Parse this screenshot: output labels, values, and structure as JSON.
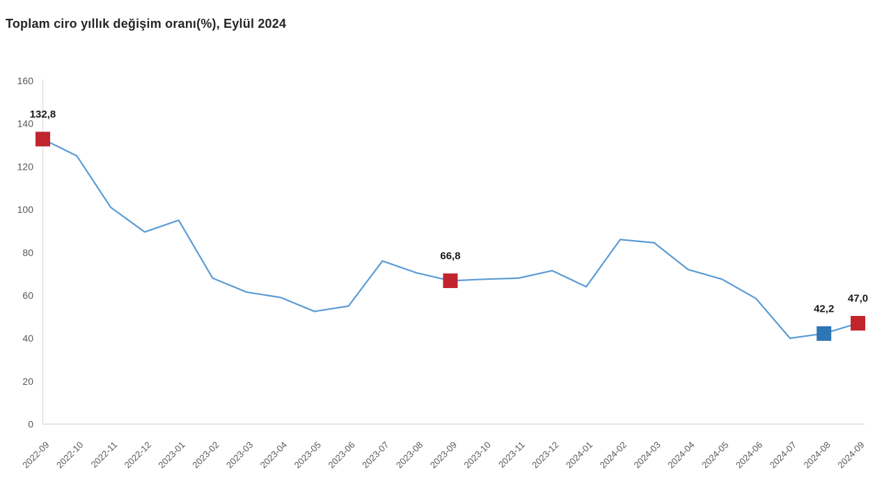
{
  "title": "Toplam ciro yıllık değişim oranı(%), Eylül 2024",
  "chart_data": {
    "type": "line",
    "title": "Toplam ciro yıllık değişim oranı(%), Eylül 2024",
    "xlabel": "",
    "ylabel": "",
    "ylim": [
      0,
      160
    ],
    "ytick_step": 20,
    "grid": false,
    "legend_position": "none",
    "line_color": "#5B9BD5",
    "axis_color": "#D9D9D9",
    "tick_label_color": "#595959",
    "x": [
      "2022-09",
      "2022-10",
      "2022-11",
      "2022-12",
      "2023-01",
      "2023-02",
      "2023-03",
      "2023-04",
      "2023-05",
      "2023-06",
      "2023-07",
      "2023-08",
      "2023-09",
      "2023-10",
      "2023-11",
      "2023-12",
      "2024-01",
      "2024-02",
      "2024-03",
      "2024-04",
      "2024-05",
      "2024-06",
      "2024-07",
      "2024-08",
      "2024-09"
    ],
    "series": [
      {
        "name": "Toplam ciro yıllık değişim oranı (%)",
        "values": [
          132.8,
          125.0,
          101.0,
          89.5,
          95.0,
          68.0,
          61.5,
          59.0,
          52.5,
          55.0,
          76.0,
          70.5,
          66.8,
          67.5,
          68.0,
          71.5,
          64.0,
          86.0,
          84.5,
          72.0,
          67.5,
          58.5,
          40.0,
          42.2,
          47.0
        ]
      }
    ],
    "annotations": [
      {
        "x": "2022-09",
        "value": 132.8,
        "label": "132,8",
        "marker_color": "#C2242E"
      },
      {
        "x": "2023-09",
        "value": 66.8,
        "label": "66,8",
        "marker_color": "#C2242E"
      },
      {
        "x": "2024-08",
        "value": 42.2,
        "label": "42,2",
        "marker_color": "#2E75B5"
      },
      {
        "x": "2024-09",
        "value": 47.0,
        "label": "47,0",
        "marker_color": "#C2242E"
      }
    ]
  }
}
